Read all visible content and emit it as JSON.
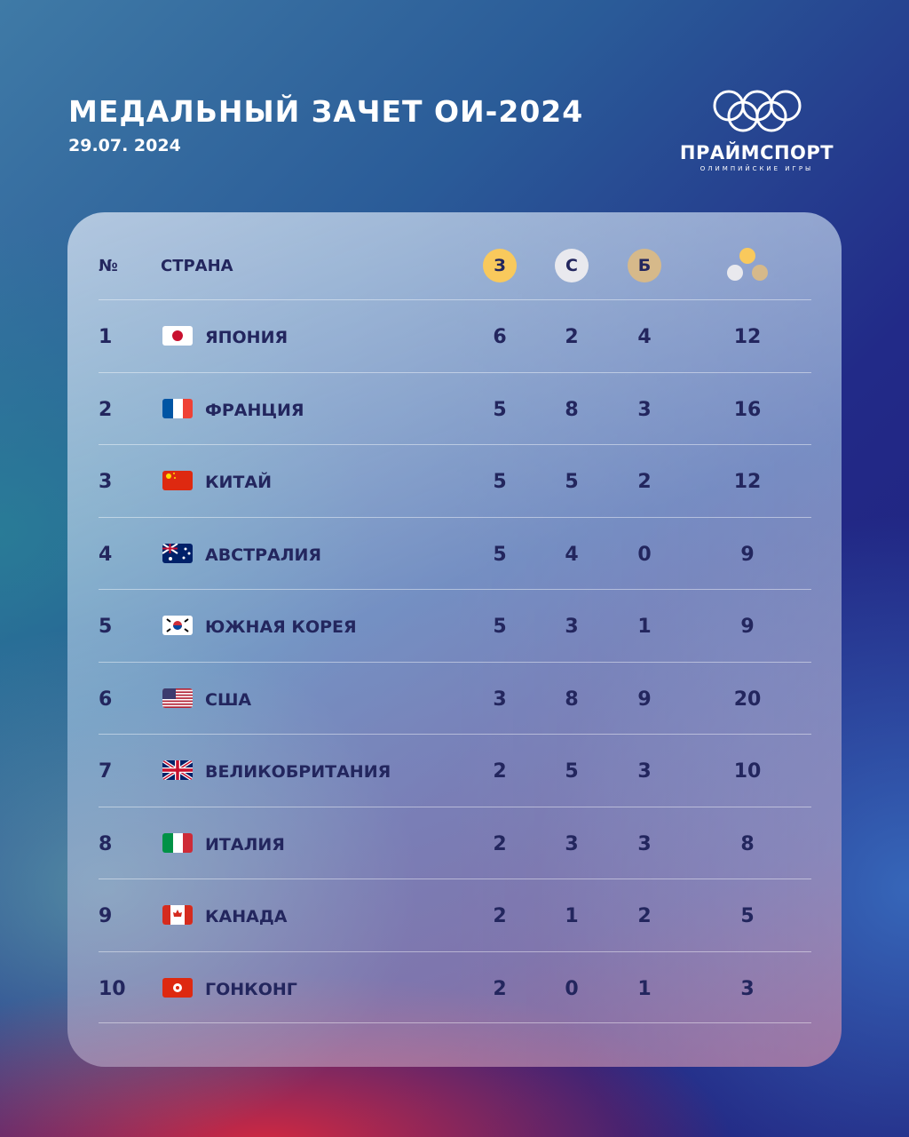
{
  "header": {
    "title": "МЕДАЛЬНЫЙ ЗАЧЕТ ОИ-2024",
    "date": "29.07. 2024"
  },
  "logo": {
    "brand": "ПРАЙМСПОРТ",
    "subtitle": "ОЛИМПИЙСКИЕ ИГРЫ"
  },
  "table": {
    "columns": {
      "rank": "№",
      "country": "СТРАНА",
      "gold": "З",
      "silver": "С",
      "bronze": "Б",
      "total_icon": "medals-total-icon"
    },
    "colors": {
      "gold": "#f9c95c",
      "silver": "#e9e9ee",
      "bronze": "#d6b98a",
      "text": "#23265e"
    },
    "rows": [
      {
        "rank": "1",
        "flag": "jp",
        "country": "ЯПОНИЯ",
        "gold": "6",
        "silver": "2",
        "bronze": "4",
        "total": "12"
      },
      {
        "rank": "2",
        "flag": "fr",
        "country": "ФРАНЦИЯ",
        "gold": "5",
        "silver": "8",
        "bronze": "3",
        "total": "16"
      },
      {
        "rank": "3",
        "flag": "cn",
        "country": "КИТАЙ",
        "gold": "5",
        "silver": "5",
        "bronze": "2",
        "total": "12"
      },
      {
        "rank": "4",
        "flag": "au",
        "country": "АВСТРАЛИЯ",
        "gold": "5",
        "silver": "4",
        "bronze": "0",
        "total": "9"
      },
      {
        "rank": "5",
        "flag": "kr",
        "country": "ЮЖНАЯ КОРЕЯ",
        "gold": "5",
        "silver": "3",
        "bronze": "1",
        "total": "9"
      },
      {
        "rank": "6",
        "flag": "us",
        "country": "США",
        "gold": "3",
        "silver": "8",
        "bronze": "9",
        "total": "20"
      },
      {
        "rank": "7",
        "flag": "gb",
        "country": "ВЕЛИКОБРИТАНИЯ",
        "gold": "2",
        "silver": "5",
        "bronze": "3",
        "total": "10"
      },
      {
        "rank": "8",
        "flag": "it",
        "country": "ИТАЛИЯ",
        "gold": "2",
        "silver": "3",
        "bronze": "3",
        "total": "8"
      },
      {
        "rank": "9",
        "flag": "ca",
        "country": "КАНАДА",
        "gold": "2",
        "silver": "1",
        "bronze": "2",
        "total": "5"
      },
      {
        "rank": "10",
        "flag": "hk",
        "country": "ГОНКОНГ",
        "gold": "2",
        "silver": "0",
        "bronze": "1",
        "total": "3"
      }
    ]
  }
}
